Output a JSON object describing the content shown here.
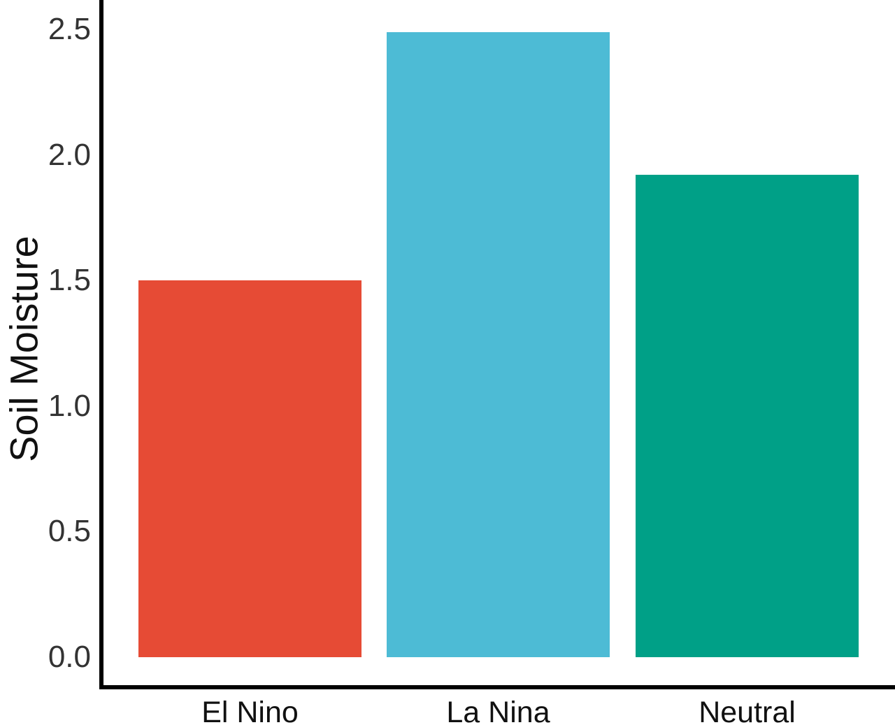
{
  "chart_data": {
    "type": "bar",
    "title": "",
    "xlabel": "",
    "ylabel": "Soil Moisture",
    "categories": [
      "El Nino",
      "La Nina",
      "Neutral"
    ],
    "values": [
      1.5,
      2.49,
      1.92
    ],
    "bar_colors": [
      "#E64B35",
      "#4DBBD5",
      "#00A087"
    ],
    "ylim": [
      0,
      2.5
    ],
    "yticks": [
      0,
      0.5,
      1,
      1.5,
      2,
      2.5
    ],
    "ytick_labels": [
      "0.0",
      "0.5",
      "1.0",
      "1.5",
      "2.0",
      "2.5"
    ],
    "grid": false,
    "legend": "none",
    "axis_color": "#000000",
    "tick_label_color": "#333333",
    "axis_label_color": "#111111"
  }
}
